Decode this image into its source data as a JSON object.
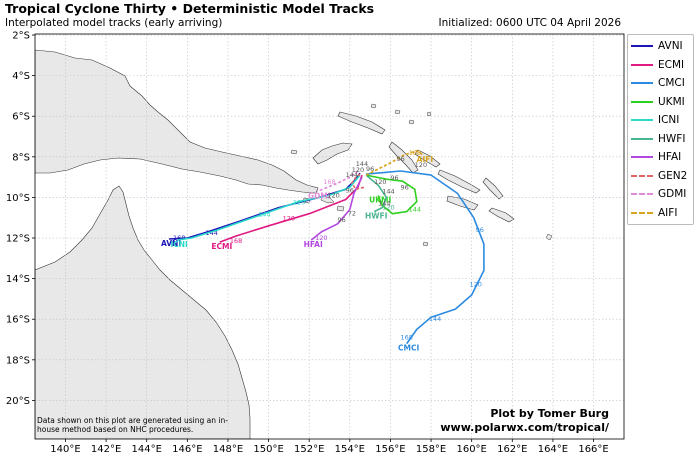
{
  "header": {
    "title": "Tropical Cyclone Thirty • Deterministic Model Tracks",
    "subtitle": "Interpolated model tracks (early arriving)",
    "initialized": "Initialized: 0600 UTC 04 April 2026"
  },
  "axes": {
    "lon_ticks": [
      "140°E",
      "142°E",
      "144°E",
      "146°E",
      "148°E",
      "150°E",
      "152°E",
      "154°E",
      "156°E",
      "158°E",
      "160°E",
      "162°E",
      "164°E",
      "166°E"
    ],
    "lat_ticks": [
      "2°S",
      "4°S",
      "6°S",
      "8°S",
      "10°S",
      "12°S",
      "14°S",
      "16°S",
      "18°S",
      "20°S"
    ],
    "lon_range": [
      138.5,
      167.5
    ],
    "lat_range": [
      -21.9,
      -1.95
    ],
    "grid": true
  },
  "legend": [
    {
      "name": "AVNI",
      "color": "#1c16b8",
      "style": "solid"
    },
    {
      "name": "ECMI",
      "color": "#e01a82",
      "style": "solid"
    },
    {
      "name": "CMCI",
      "color": "#2b8be0",
      "style": "solid"
    },
    {
      "name": "UKMI",
      "color": "#2ed11f",
      "style": "solid"
    },
    {
      "name": "ICNI",
      "color": "#2ad9c9",
      "style": "solid"
    },
    {
      "name": "HWFI",
      "color": "#49b48e",
      "style": "solid"
    },
    {
      "name": "HFAI",
      "color": "#b348e0",
      "style": "solid"
    },
    {
      "name": "GEN2",
      "color": "#e06666",
      "style": "dashed"
    },
    {
      "name": "GDMI",
      "color": "#e08ad8",
      "style": "dashed"
    },
    {
      "name": "AIFI",
      "color": "#d9a21b",
      "style": "dashed"
    }
  ],
  "tracks": [
    {
      "name": "AVNI",
      "color": "#1c16b8",
      "dashed": false,
      "label": "AVNI",
      "points": [
        [
          154.5,
          -8.8
        ],
        [
          154.2,
          -9.2
        ],
        [
          153.8,
          -9.6
        ],
        [
          152.5,
          -10.0
        ],
        [
          150.5,
          -10.5
        ],
        [
          148.5,
          -11.2
        ],
        [
          147.0,
          -11.7
        ],
        [
          146.0,
          -12.0
        ],
        [
          145.1,
          -12.05
        ]
      ],
      "marks": [
        {
          "text": "144",
          "lon": 147.2,
          "lat": -11.75
        },
        {
          "text": "168",
          "lon": 145.6,
          "lat": -12.0
        }
      ]
    },
    {
      "name": "ECMI",
      "color": "#e01a82",
      "dashed": false,
      "label": "ECMI",
      "points": [
        [
          154.6,
          -8.9
        ],
        [
          154.4,
          -9.5
        ],
        [
          153.8,
          -10.1
        ],
        [
          152.0,
          -10.8
        ],
        [
          150.0,
          -11.4
        ],
        [
          148.4,
          -11.9
        ],
        [
          147.6,
          -12.2
        ]
      ],
      "marks": [
        {
          "text": "120",
          "lon": 151.0,
          "lat": -11.05
        },
        {
          "text": "168",
          "lon": 148.4,
          "lat": -12.15
        }
      ]
    },
    {
      "name": "CMCI",
      "color": "#2b8be0",
      "dashed": false,
      "label": "CMCI",
      "points": [
        [
          154.8,
          -8.85
        ],
        [
          156.5,
          -8.7
        ],
        [
          158.0,
          -8.9
        ],
        [
          159.3,
          -9.8
        ],
        [
          160.1,
          -11.0
        ],
        [
          160.6,
          -12.3
        ],
        [
          160.6,
          -13.6
        ],
        [
          160.0,
          -14.8
        ],
        [
          159.2,
          -15.5
        ],
        [
          158.0,
          -15.9
        ],
        [
          157.3,
          -16.5
        ],
        [
          156.8,
          -17.2
        ]
      ],
      "marks": [
        {
          "text": "96",
          "lon": 160.4,
          "lat": -11.6
        },
        {
          "text": "120",
          "lon": 160.2,
          "lat": -14.3
        },
        {
          "text": "144",
          "lon": 158.2,
          "lat": -16.0
        },
        {
          "text": "168",
          "lon": 156.8,
          "lat": -16.9
        }
      ]
    },
    {
      "name": "UKMI",
      "color": "#2ed11f",
      "dashed": false,
      "label": "UKMI",
      "points": [
        [
          154.8,
          -8.9
        ],
        [
          155.8,
          -9.1
        ],
        [
          156.6,
          -9.2
        ],
        [
          157.2,
          -9.6
        ],
        [
          157.3,
          -10.2
        ],
        [
          156.8,
          -10.7
        ],
        [
          156.1,
          -10.8
        ],
        [
          155.6,
          -10.4
        ],
        [
          155.4,
          -9.9
        ]
      ],
      "marks": [
        {
          "text": "144",
          "lon": 157.2,
          "lat": -10.6
        }
      ]
    },
    {
      "name": "ICNI",
      "color": "#2ad9c9",
      "dashed": false,
      "label": "ICNI",
      "points": [
        [
          154.5,
          -8.9
        ],
        [
          154.0,
          -9.5
        ],
        [
          153.0,
          -9.9
        ],
        [
          151.5,
          -10.2
        ],
        [
          149.5,
          -10.9
        ],
        [
          147.5,
          -11.6
        ],
        [
          146.2,
          -12.0
        ],
        [
          145.5,
          -12.1
        ]
      ],
      "marks": [
        {
          "text": "120",
          "lon": 151.5,
          "lat": -10.25
        },
        {
          "text": "144",
          "lon": 149.8,
          "lat": -10.85
        }
      ]
    },
    {
      "name": "HWFI",
      "color": "#49b48e",
      "dashed": false,
      "label": "HWFI",
      "points": [
        [
          154.8,
          -8.9
        ],
        [
          155.4,
          -9.4
        ],
        [
          155.8,
          -10.0
        ],
        [
          155.6,
          -10.5
        ],
        [
          155.2,
          -10.7
        ]
      ],
      "marks": [
        {
          "text": "120",
          "lon": 155.9,
          "lat": -10.5
        }
      ]
    },
    {
      "name": "HFAI",
      "color": "#b348e0",
      "dashed": false,
      "label": "HFAI",
      "points": [
        [
          154.6,
          -9.0
        ],
        [
          154.2,
          -9.8
        ],
        [
          154.0,
          -10.6
        ],
        [
          153.4,
          -11.3
        ],
        [
          152.6,
          -11.7
        ],
        [
          152.1,
          -12.1
        ]
      ],
      "marks": [
        {
          "text": "120",
          "lon": 152.6,
          "lat": -12.0
        }
      ]
    },
    {
      "name": "GEN2",
      "color": "#e06666",
      "dashed": true,
      "label": "",
      "points": [
        [
          154.5,
          -8.85
        ],
        [
          154.3,
          -9.0
        ],
        [
          154.1,
          -9.3
        ],
        [
          154.3,
          -9.6
        ],
        [
          154.7,
          -9.5
        ]
      ],
      "marks": []
    },
    {
      "name": "GDMI",
      "color": "#e08ad8",
      "dashed": true,
      "label": "GDMI",
      "points": [
        [
          154.4,
          -8.7
        ],
        [
          154.0,
          -9.0
        ],
        [
          153.4,
          -9.3
        ],
        [
          152.9,
          -9.5
        ],
        [
          152.4,
          -9.7
        ]
      ],
      "marks": [
        {
          "text": "168",
          "lon": 153.0,
          "lat": -9.25
        }
      ]
    },
    {
      "name": "AIFI",
      "color": "#d9a21b",
      "dashed": true,
      "label": "AIFI",
      "points": [
        [
          154.8,
          -8.9
        ],
        [
          155.4,
          -8.6
        ],
        [
          156.0,
          -8.3
        ],
        [
          156.7,
          -7.9
        ],
        [
          157.3,
          -7.7
        ],
        [
          157.6,
          -7.9
        ]
      ],
      "marks": [
        {
          "text": "168",
          "lon": 157.2,
          "lat": -7.8
        }
      ]
    }
  ],
  "cluster_marks": [
    {
      "text": "144",
      "lon": 154.6,
      "lat": -8.35
    },
    {
      "text": "96",
      "lon": 155.0,
      "lat": -8.6
    },
    {
      "text": "120",
      "lon": 154.4,
      "lat": -8.65
    },
    {
      "text": "144",
      "lon": 154.1,
      "lat": -8.9
    },
    {
      "text": "96",
      "lon": 156.2,
      "lat": -9.05
    },
    {
      "text": "120",
      "lon": 155.5,
      "lat": -9.25
    },
    {
      "text": "96",
      "lon": 156.7,
      "lat": -9.5
    },
    {
      "text": "144",
      "lon": 155.9,
      "lat": -9.7
    },
    {
      "text": "96",
      "lon": 154.0,
      "lat": -9.65
    },
    {
      "text": "120",
      "lon": 153.2,
      "lat": -9.9
    },
    {
      "text": "72",
      "lon": 154.1,
      "lat": -10.8
    },
    {
      "text": "96",
      "lon": 156.5,
      "lat": -8.1
    },
    {
      "text": "120",
      "lon": 157.5,
      "lat": -8.4
    },
    {
      "text": "144",
      "lon": 155.7,
      "lat": -10.3
    },
    {
      "text": "96",
      "lon": 153.6,
      "lat": -11.1
    }
  ],
  "footer": {
    "disclaimer": "Data shown on this plot are generated using an in-house method based on NHC procedures.",
    "credit_line1": "Plot by Tomer Burg",
    "credit_line2": "www.polarwx.com/tropical/"
  },
  "colors": {
    "land": "#e8e8e8",
    "ocean": "#ffffff",
    "coast": "#333333",
    "grid": "#b9c2cc"
  }
}
